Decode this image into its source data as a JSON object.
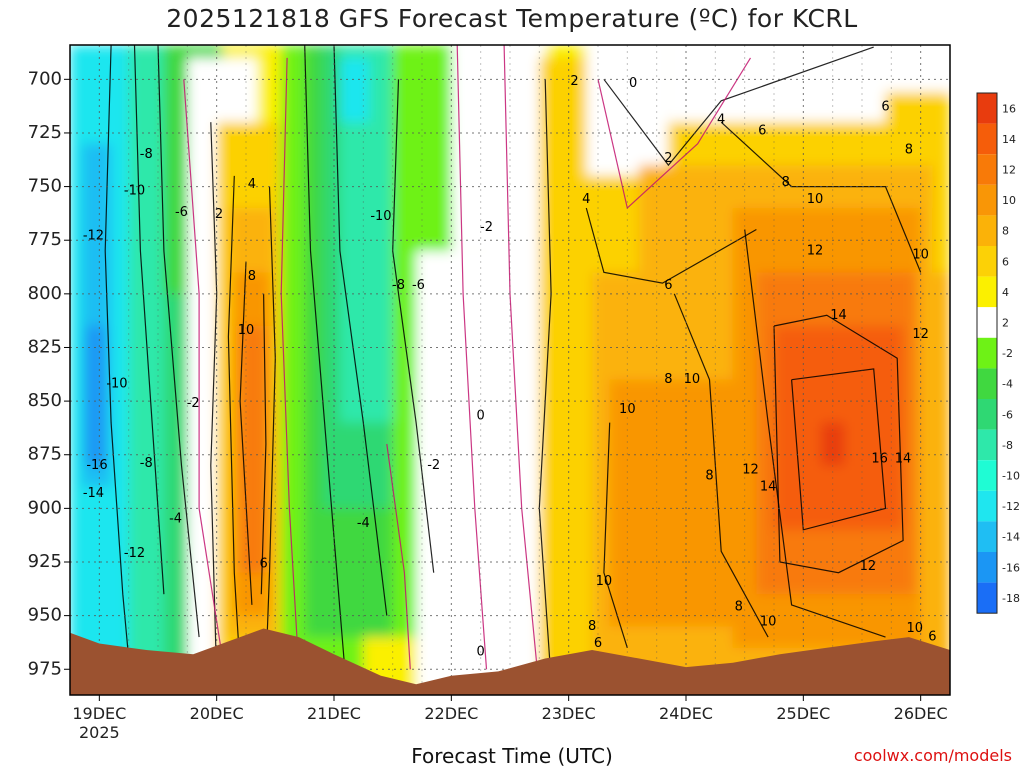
{
  "chart_data": {
    "type": "heatmap",
    "title": "2025121818 GFS Forecast Temperature (ºC) for KCRL",
    "xlabel": "Forecast Time (UTC)",
    "ylabel": "",
    "credit": "coolwx.com/models",
    "year_label": "2025",
    "x_ticks": [
      "19DEC",
      "20DEC",
      "21DEC",
      "22DEC",
      "23DEC",
      "24DEC",
      "25DEC",
      "26DEC"
    ],
    "y_ticks": [
      700,
      725,
      750,
      775,
      800,
      825,
      850,
      875,
      900,
      925,
      950,
      975
    ],
    "ylim": [
      987,
      684
    ],
    "xlim_days": [
      18.75,
      26.25
    ],
    "grid": true,
    "colorbar_labels": [
      16,
      14,
      12,
      10,
      8,
      6,
      4,
      2,
      -2,
      -4,
      -6,
      -8,
      -10,
      -12,
      -14,
      -16,
      -18
    ],
    "colorbar_colors": [
      "#e83c0e",
      "#f55d0a",
      "#f87a08",
      "#f99606",
      "#fbb208",
      "#fcd106",
      "#fbf000",
      "#ffffff",
      "#6ef216",
      "#40d840",
      "#2fd873",
      "#2ee8aa",
      "#1ffcd4",
      "#1fe6ef",
      "#1fbef3",
      "#1b96f4",
      "#1a6ef6"
    ],
    "surface_color": "#9b5230",
    "contour_labels": [
      {
        "x": 19.4,
        "p": 735,
        "v": "-8"
      },
      {
        "x": 19.3,
        "p": 752,
        "v": "-10"
      },
      {
        "x": 18.95,
        "p": 773,
        "v": "-12"
      },
      {
        "x": 19.7,
        "p": 762,
        "v": "-6"
      },
      {
        "x": 19.15,
        "p": 842,
        "v": "-10"
      },
      {
        "x": 19.4,
        "p": 879,
        "v": "-8"
      },
      {
        "x": 18.98,
        "p": 880,
        "v": "-16"
      },
      {
        "x": 18.95,
        "p": 893,
        "v": "-14"
      },
      {
        "x": 19.65,
        "p": 905,
        "v": "-4"
      },
      {
        "x": 19.3,
        "p": 921,
        "v": "-12"
      },
      {
        "x": 20.02,
        "p": 763,
        "v": "2"
      },
      {
        "x": 20.3,
        "p": 749,
        "v": "4"
      },
      {
        "x": 20.3,
        "p": 792,
        "v": "8"
      },
      {
        "x": 20.25,
        "p": 817,
        "v": "10"
      },
      {
        "x": 19.8,
        "p": 851,
        "v": "-2"
      },
      {
        "x": 20.4,
        "p": 926,
        "v": "6"
      },
      {
        "x": 21.4,
        "p": 764,
        "v": "-10"
      },
      {
        "x": 21.55,
        "p": 796,
        "v": "-8"
      },
      {
        "x": 21.72,
        "p": 796,
        "v": "-6"
      },
      {
        "x": 21.85,
        "p": 880,
        "v": "-2"
      },
      {
        "x": 21.25,
        "p": 907,
        "v": "-4"
      },
      {
        "x": 22.3,
        "p": 769,
        "v": "-2"
      },
      {
        "x": 22.25,
        "p": 857,
        "v": "0"
      },
      {
        "x": 22.25,
        "p": 967,
        "v": "0"
      },
      {
        "x": 23.05,
        "p": 701,
        "v": "2"
      },
      {
        "x": 23.55,
        "p": 702,
        "v": "0"
      },
      {
        "x": 23.85,
        "p": 737,
        "v": "2"
      },
      {
        "x": 24.3,
        "p": 719,
        "v": "4"
      },
      {
        "x": 24.65,
        "p": 724,
        "v": "6"
      },
      {
        "x": 23.15,
        "p": 756,
        "v": "4"
      },
      {
        "x": 24.85,
        "p": 748,
        "v": "8"
      },
      {
        "x": 25.1,
        "p": 756,
        "v": "10"
      },
      {
        "x": 25.7,
        "p": 713,
        "v": "6"
      },
      {
        "x": 25.9,
        "p": 733,
        "v": "8"
      },
      {
        "x": 25.1,
        "p": 780,
        "v": "12"
      },
      {
        "x": 23.85,
        "p": 796,
        "v": "6"
      },
      {
        "x": 25.3,
        "p": 810,
        "v": "14"
      },
      {
        "x": 26.0,
        "p": 782,
        "v": "10"
      },
      {
        "x": 26.0,
        "p": 819,
        "v": "12"
      },
      {
        "x": 23.85,
        "p": 840,
        "v": "8"
      },
      {
        "x": 24.05,
        "p": 840,
        "v": "10"
      },
      {
        "x": 23.5,
        "p": 854,
        "v": "10"
      },
      {
        "x": 24.2,
        "p": 885,
        "v": "8"
      },
      {
        "x": 24.55,
        "p": 882,
        "v": "12"
      },
      {
        "x": 24.7,
        "p": 890,
        "v": "14"
      },
      {
        "x": 25.65,
        "p": 877,
        "v": "16"
      },
      {
        "x": 25.85,
        "p": 877,
        "v": "14"
      },
      {
        "x": 23.3,
        "p": 934,
        "v": "10"
      },
      {
        "x": 24.45,
        "p": 946,
        "v": "8"
      },
      {
        "x": 25.55,
        "p": 927,
        "v": "12"
      },
      {
        "x": 23.2,
        "p": 955,
        "v": "8"
      },
      {
        "x": 23.25,
        "p": 963,
        "v": "6"
      },
      {
        "x": 24.7,
        "p": 953,
        "v": "10"
      },
      {
        "x": 25.95,
        "p": 956,
        "v": "10"
      },
      {
        "x": 26.1,
        "p": 960,
        "v": "6"
      }
    ]
  }
}
